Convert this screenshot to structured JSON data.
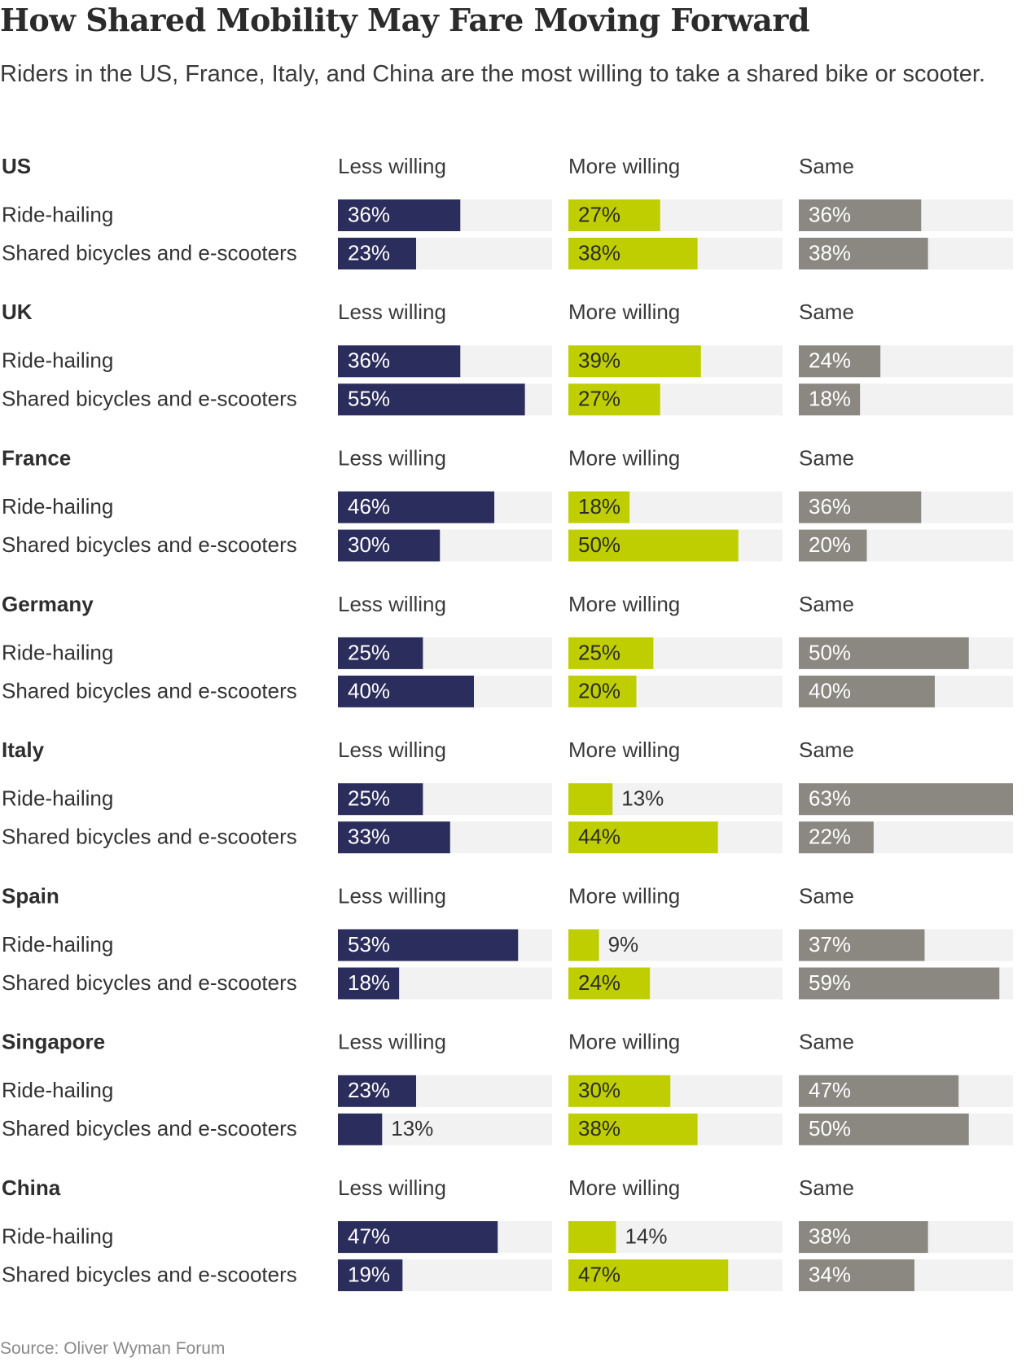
{
  "chart_data": {
    "type": "bar",
    "title": "How Shared Mobility May Fare Moving Forward",
    "subtitle": "Riders in the US, France, Italy, and China are the most willing to take a shared bike or scooter.",
    "source": "Source: Oliver Wyman Forum",
    "columns": [
      "Less willing",
      "More willing",
      "Same"
    ],
    "column_colors": [
      "#2b2d5c",
      "#bfce00",
      "#8b8881"
    ],
    "track_color": "#f2f2f2",
    "xlim": [
      0,
      63
    ],
    "rows": [
      "Ride-hailing",
      "Shared bicycles and e-scooters"
    ],
    "groups": [
      {
        "country": "US",
        "values": [
          [
            36,
            27,
            36
          ],
          [
            23,
            38,
            38
          ]
        ]
      },
      {
        "country": "UK",
        "values": [
          [
            36,
            39,
            24
          ],
          [
            55,
            27,
            18
          ]
        ]
      },
      {
        "country": "France",
        "values": [
          [
            46,
            18,
            36
          ],
          [
            30,
            50,
            20
          ]
        ]
      },
      {
        "country": "Germany",
        "values": [
          [
            25,
            25,
            50
          ],
          [
            40,
            20,
            40
          ]
        ]
      },
      {
        "country": "Italy",
        "values": [
          [
            25,
            13,
            63
          ],
          [
            33,
            44,
            22
          ]
        ]
      },
      {
        "country": "Spain",
        "values": [
          [
            53,
            9,
            37
          ],
          [
            18,
            24,
            59
          ]
        ]
      },
      {
        "country": "Singapore",
        "values": [
          [
            23,
            30,
            47
          ],
          [
            13,
            38,
            50
          ]
        ]
      },
      {
        "country": "China",
        "values": [
          [
            47,
            14,
            38
          ],
          [
            19,
            47,
            34
          ]
        ]
      }
    ]
  }
}
